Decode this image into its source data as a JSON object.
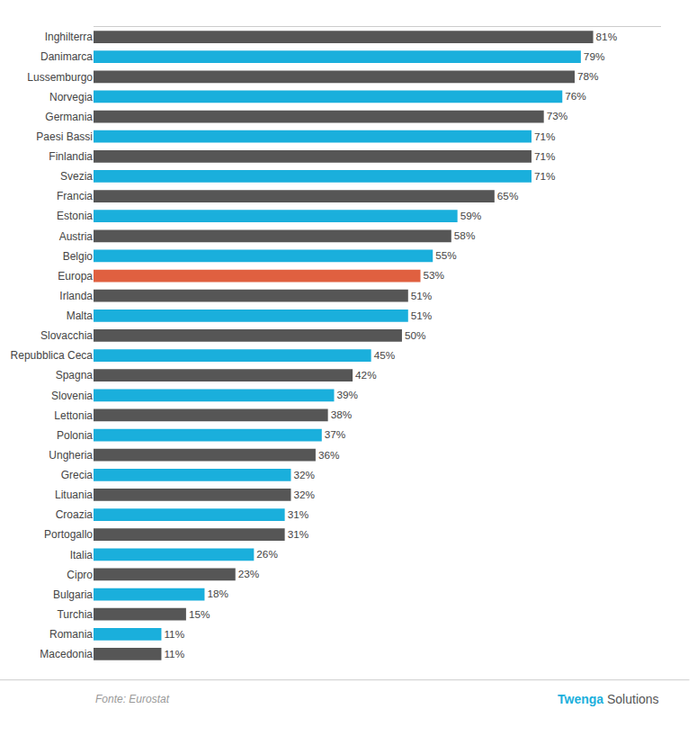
{
  "chart_data": {
    "type": "bar",
    "orientation": "horizontal",
    "categories": [
      "Inghilterra",
      "Danimarca",
      "Lussemburgo",
      "Norvegia",
      "Germania",
      "Paesi Bassi",
      "Finlandia",
      "Svezia",
      "Francia",
      "Estonia",
      "Austria",
      "Belgio",
      "Europa",
      "Irlanda",
      "Malta",
      "Slovacchia",
      "Repubblica Ceca",
      "Spagna",
      "Slovenia",
      "Lettonia",
      "Polonia",
      "Ungheria",
      "Grecia",
      "Lituania",
      "Croazia",
      "Portogallo",
      "Italia",
      "Cipro",
      "Bulgaria",
      "Turchia",
      "Romania",
      "Macedonia"
    ],
    "values": [
      81,
      79,
      78,
      76,
      73,
      71,
      71,
      71,
      65,
      59,
      58,
      55,
      53,
      51,
      51,
      50,
      45,
      42,
      39,
      38,
      37,
      36,
      32,
      32,
      31,
      31,
      26,
      23,
      18,
      15,
      11,
      11
    ],
    "value_labels": [
      "81%",
      "79%",
      "78%",
      "76%",
      "73%",
      "71%",
      "71%",
      "71%",
      "65%",
      "59%",
      "58%",
      "55%",
      "53%",
      "51%",
      "51%",
      "50%",
      "45%",
      "42%",
      "39%",
      "38%",
      "37%",
      "36%",
      "32%",
      "32%",
      "31%",
      "31%",
      "26%",
      "23%",
      "18%",
      "15%",
      "11%",
      "11%"
    ],
    "colors": [
      "#565656",
      "#1AAFDC",
      "#565656",
      "#1AAFDC",
      "#565656",
      "#1AAFDC",
      "#565656",
      "#1AAFDC",
      "#565656",
      "#1AAFDC",
      "#565656",
      "#1AAFDC",
      "#E06040",
      "#565656",
      "#1AAFDC",
      "#565656",
      "#1AAFDC",
      "#565656",
      "#1AAFDC",
      "#565656",
      "#1AAFDC",
      "#565656",
      "#1AAFDC",
      "#565656",
      "#1AAFDC",
      "#565656",
      "#1AAFDC",
      "#565656",
      "#1AAFDC",
      "#565656",
      "#1AAFDC",
      "#565656"
    ],
    "xlim": [
      0,
      92
    ],
    "grid": false,
    "data_labels": true,
    "tick_labels": "y",
    "annotations": [
      {
        "text": "Fonte: Eurostat",
        "color": "#999999"
      },
      {
        "text": "Twenga",
        "color": "#1AAFDC"
      },
      {
        "text": "Solutions",
        "color": "#555555"
      }
    ]
  }
}
